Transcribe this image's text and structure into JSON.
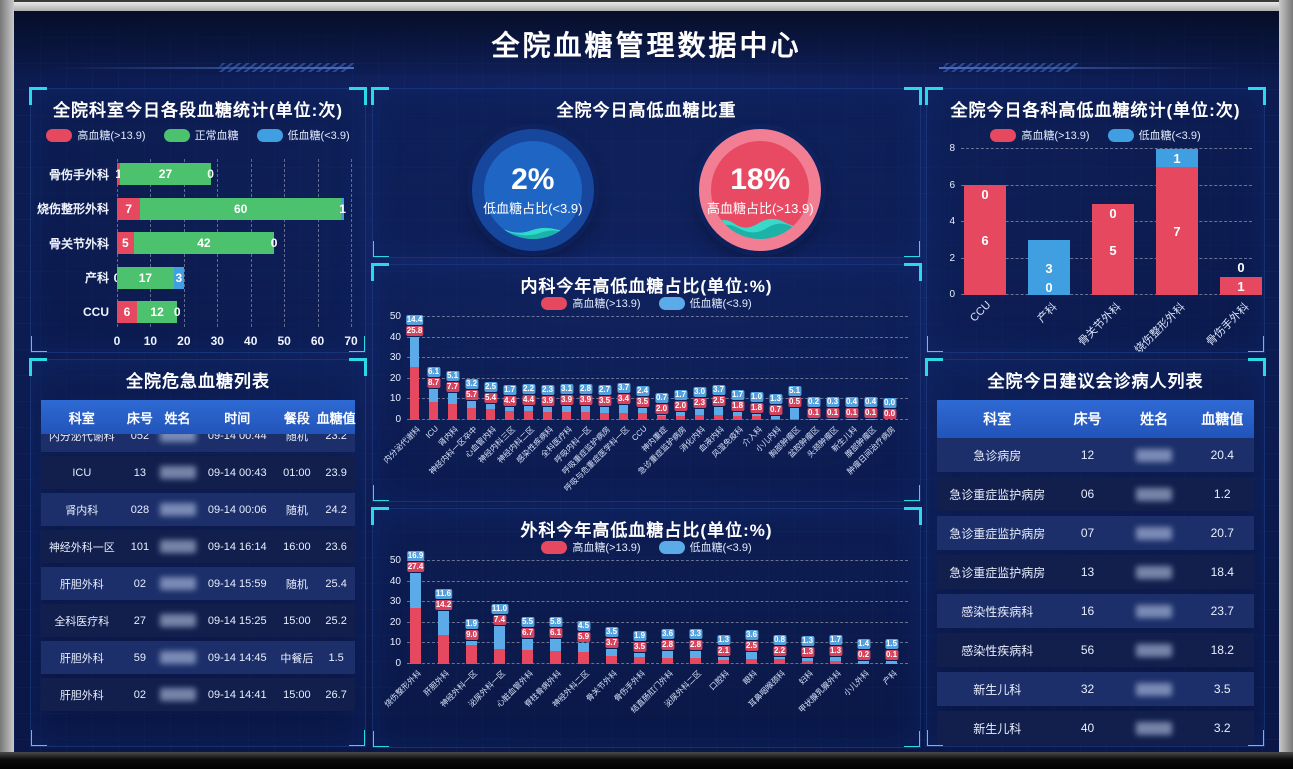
{
  "title": "全院血糖管理数据中心",
  "chart_data": [
    {
      "id": "dept_today",
      "type": "stacked-bar-horizontal",
      "title": "全院科室今日各段血糖统计(单位:次)",
      "legend": [
        {
          "label": "高血糖(>13.9)",
          "color": "#e64860"
        },
        {
          "label": "正常血糖",
          "color": "#4cc26e"
        },
        {
          "label": "低血糖(<3.9)",
          "color": "#3f9fe0"
        }
      ],
      "categories": [
        "骨伤手外科",
        "烧伤整形外科",
        "骨关节外科",
        "产科",
        "CCU"
      ],
      "series": [
        {
          "name": "高血糖(>13.9)",
          "color": "#e64860",
          "values": [
            1,
            7,
            5,
            0,
            6
          ]
        },
        {
          "name": "正常血糖",
          "color": "#4cc26e",
          "values": [
            27,
            60,
            42,
            17,
            12
          ]
        },
        {
          "name": "低血糖(<3.9)",
          "color": "#3f9fe0",
          "values": [
            0,
            1,
            0,
            3,
            0
          ]
        }
      ],
      "xticks": [
        0,
        10,
        20,
        30,
        40,
        50,
        60,
        70
      ],
      "xmax": 70
    },
    {
      "id": "ratio_today",
      "type": "gauge",
      "title": "全院今日高低血糖比重",
      "gauges": [
        {
          "value": "2%",
          "pct": 2,
          "label": "低血糖占比(<3.9)",
          "ring": "#16479d",
          "disc": "#1f66c4",
          "wave": "#2fe0cf"
        },
        {
          "value": "18%",
          "pct": 18,
          "label": "高血糖占比(>13.9)",
          "ring": "#f27e93",
          "disc": "#e84a63",
          "wave": "#2fe0cf"
        }
      ]
    },
    {
      "id": "internal_year",
      "type": "stacked-bar-vertical",
      "title": "内科今年高低血糖占比(单位:%)",
      "legend": [
        {
          "label": "高血糖(>13.9)",
          "color": "#e64860"
        },
        {
          "label": "低血糖(<3.9)",
          "color": "#5aabe8"
        }
      ],
      "categories": [
        "内分泌代谢科",
        "ICU",
        "肾内科",
        "神经内科一区卒中",
        "心血管内科",
        "神经内科三区",
        "神经内科二区",
        "感染性疾病科",
        "全科医疗科",
        "呼吸内科一区",
        "呼吸重症监护病房",
        "呼吸与危重症医学科一区",
        "CCU",
        "神内重症",
        "急诊重症监护病房",
        "消化内科",
        "血液内科",
        "风湿免疫科",
        "介入科",
        "小儿内科",
        "胸部肿瘤区",
        "盆腔肿瘤区",
        "头颈肿瘤区",
        "新生儿科",
        "腹部肿瘤区",
        "肿瘤日间治疗病房"
      ],
      "series": [
        {
          "name": "高血糖(>13.9)",
          "color": "#e64860",
          "values": [
            25.8,
            8.7,
            7.7,
            5.7,
            5.4,
            4.4,
            4.4,
            3.9,
            3.9,
            3.9,
            3.5,
            3.4,
            3.5,
            2.0,
            2.0,
            2.3,
            2.5,
            1.8,
            1.8,
            0.7,
            0.5,
            0.1,
            0.1,
            0.1,
            0.1,
            0.0
          ]
        },
        {
          "name": "低血糖(<3.9)",
          "color": "#5aabe8",
          "values": [
            14.4,
            6.1,
            5.1,
            3.2,
            2.5,
            1.7,
            2.2,
            2.3,
            3.1,
            2.8,
            2.7,
            3.7,
            2.4,
            0.7,
            1.7,
            3.0,
            3.7,
            1.7,
            1.0,
            1.3,
            5.1,
            0.2,
            0.3,
            0.4,
            0.4,
            0.0
          ]
        }
      ],
      "yticks": [
        0,
        10,
        20,
        30,
        40,
        50
      ],
      "ymax": 50
    },
    {
      "id": "surgery_year",
      "type": "stacked-bar-vertical",
      "title": "外科今年高低血糖占比(单位:%)",
      "legend": [
        {
          "label": "高血糖(>13.9)",
          "color": "#e64860"
        },
        {
          "label": "低血糖(<3.9)",
          "color": "#5aabe8"
        }
      ],
      "categories": [
        "烧伤整形外科",
        "肝胆外科",
        "神经外科一区",
        "泌尿外科一区",
        "心脏血管外科",
        "脊柱骨病外科",
        "神经外科二区",
        "骨关节外科",
        "骨伤手外科",
        "结直肠肛门外科",
        "泌尿外科二区",
        "口腔科",
        "眼科",
        "耳鼻咽喉颈科",
        "妇科",
        "甲状腺乳腺外科",
        "小儿外科",
        "产科"
      ],
      "series": [
        {
          "name": "高血糖(>13.9)",
          "color": "#e64860",
          "values": [
            27.4,
            14.2,
            9.0,
            7.4,
            6.7,
            6.1,
            5.9,
            3.7,
            3.5,
            2.8,
            2.8,
            2.1,
            2.5,
            2.2,
            1.3,
            1.3,
            0.2,
            0.1
          ]
        },
        {
          "name": "低血糖(<3.9)",
          "color": "#5aabe8",
          "values": [
            16.9,
            11.6,
            1.9,
            11.0,
            5.5,
            5.8,
            4.5,
            3.5,
            1.9,
            3.6,
            3.3,
            1.3,
            3.6,
            0.8,
            1.3,
            1.7,
            1.4,
            1.5
          ]
        }
      ],
      "yticks": [
        0,
        10,
        20,
        30,
        40,
        50
      ],
      "ymax": 50
    },
    {
      "id": "dept_hl_today",
      "type": "stacked-bar-vertical-inner",
      "title": "全院今日各科高低血糖统计(单位:次)",
      "legend": [
        {
          "label": "高血糖(>13.9)",
          "color": "#e64860"
        },
        {
          "label": "低血糖(<3.9)",
          "color": "#3f9fe0"
        }
      ],
      "categories": [
        "CCU",
        "产科",
        "骨关节外科",
        "烧伤整形外科",
        "骨伤手外科"
      ],
      "series": [
        {
          "name": "高血糖(>13.9)",
          "color": "#e64860",
          "values": [
            6,
            0,
            5,
            7,
            1
          ]
        },
        {
          "name": "低血糖(<3.9)",
          "color": "#3f9fe0",
          "values": [
            0,
            3,
            0,
            1,
            0
          ]
        }
      ],
      "yticks": [
        0,
        2,
        4,
        6,
        8
      ],
      "ymax": 8
    }
  ],
  "tables": {
    "critical": {
      "title": "全院危急血糖列表",
      "columns": [
        "科室",
        "床号",
        "姓名",
        "时间",
        "餐段",
        "血糖值"
      ],
      "widths": [
        26,
        11,
        13,
        25,
        13,
        12
      ],
      "blur_col": 2,
      "rows": [
        [
          "内分泌代谢科",
          "052",
          "",
          "09-14 00:44",
          "随机",
          "23.2"
        ],
        [
          "ICU",
          "13",
          "",
          "09-14 00:43",
          "01:00",
          "23.9"
        ],
        [
          "肾内科",
          "028",
          "",
          "09-14 00:06",
          "随机",
          "24.2"
        ],
        [
          "神经外科一区",
          "101",
          "",
          "09-14 16:14",
          "16:00",
          "23.6"
        ],
        [
          "肝胆外科",
          "02",
          "",
          "09-14 15:59",
          "随机",
          "25.4"
        ],
        [
          "全科医疗科",
          "27",
          "",
          "09-14 15:25",
          "15:00",
          "25.2"
        ],
        [
          "肝胆外科",
          "59",
          "",
          "09-14 14:45",
          "中餐后",
          "1.5"
        ],
        [
          "肝胆外科",
          "02",
          "",
          "09-14 14:41",
          "15:00",
          "26.7"
        ]
      ]
    },
    "consult": {
      "title": "全院今日建议会诊病人列表",
      "columns": [
        "科室",
        "床号",
        "姓名",
        "血糖值"
      ],
      "widths": [
        38,
        19,
        23,
        20
      ],
      "blur_col": 2,
      "rows": [
        [
          "急诊病房",
          "12",
          "",
          "20.4"
        ],
        [
          "急诊重症监护病房",
          "06",
          "",
          "1.2"
        ],
        [
          "急诊重症监护病房",
          "07",
          "",
          "20.7"
        ],
        [
          "急诊重症监护病房",
          "13",
          "",
          "18.4"
        ],
        [
          "感染性疾病科",
          "16",
          "",
          "23.7"
        ],
        [
          "感染性疾病科",
          "56",
          "",
          "18.2"
        ],
        [
          "新生儿科",
          "32",
          "",
          "3.5"
        ],
        [
          "新生儿科",
          "40",
          "",
          "3.2"
        ]
      ]
    }
  }
}
